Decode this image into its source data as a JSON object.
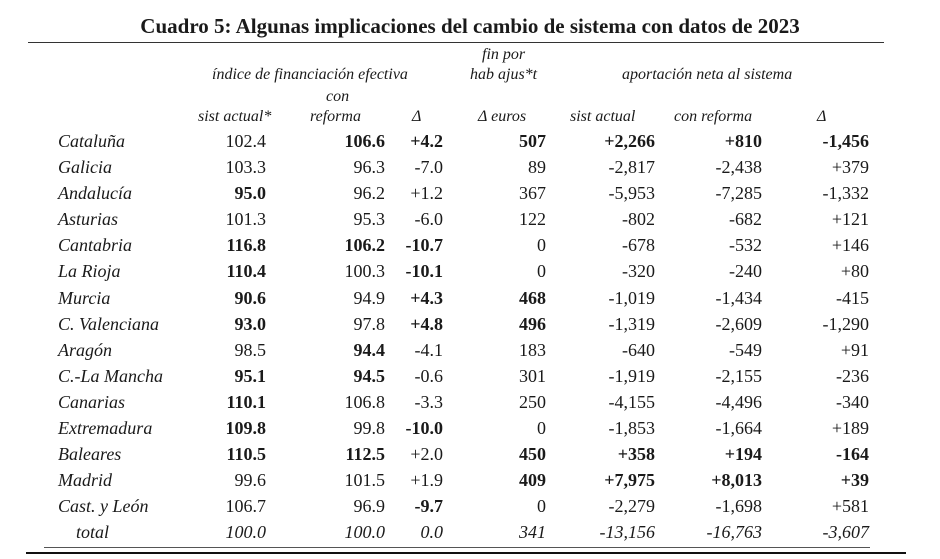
{
  "title": "Cuadro 5: Algunas implicaciones del cambio de sistema con datos de 2023",
  "headers": {
    "group1": "índice de financiación efectiva",
    "group2_line1": "fin por",
    "group2_line2": "hab ajus*t",
    "group3": "aportación neta al sistema",
    "col1": "sist actual*",
    "col2_line1": "con",
    "col2_line2": "reforma",
    "col3": "Δ",
    "col4": "Δ euros",
    "col5": "sist actual",
    "col6": "con reforma",
    "col7": "Δ"
  },
  "rows": [
    {
      "name": "Cataluña",
      "v": [
        "102.4",
        "106.6",
        "+4.2",
        "507",
        "+2,266",
        "+810",
        "-1,456"
      ],
      "bold": [
        0,
        1,
        1,
        1,
        1,
        1,
        1
      ]
    },
    {
      "name": "Galicia",
      "v": [
        "103.3",
        "96.3",
        "-7.0",
        "89",
        "-2,817",
        "-2,438",
        "+379"
      ],
      "bold": [
        0,
        0,
        0,
        0,
        0,
        0,
        0
      ]
    },
    {
      "name": "Andalucía",
      "v": [
        "95.0",
        "96.2",
        "+1.2",
        "367",
        "-5,953",
        "-7,285",
        "-1,332"
      ],
      "bold": [
        1,
        0,
        0,
        0,
        0,
        0,
        0
      ]
    },
    {
      "name": "Asturias",
      "v": [
        "101.3",
        "95.3",
        "-6.0",
        "122",
        "-802",
        "-682",
        "+121"
      ],
      "bold": [
        0,
        0,
        0,
        0,
        0,
        0,
        0
      ]
    },
    {
      "name": "Cantabria",
      "v": [
        "116.8",
        "106.2",
        "-10.7",
        "0",
        "-678",
        "-532",
        "+146"
      ],
      "bold": [
        1,
        1,
        1,
        0,
        0,
        0,
        0
      ]
    },
    {
      "name": "La Rioja",
      "v": [
        "110.4",
        "100.3",
        "-10.1",
        "0",
        "-320",
        "-240",
        "+80"
      ],
      "bold": [
        1,
        0,
        1,
        0,
        0,
        0,
        0
      ]
    },
    {
      "name": "Murcia",
      "v": [
        "90.6",
        "94.9",
        "+4.3",
        "468",
        "-1,019",
        "-1,434",
        "-415"
      ],
      "bold": [
        1,
        0,
        1,
        1,
        0,
        0,
        0
      ]
    },
    {
      "name": "C. Valenciana",
      "v": [
        "93.0",
        "97.8",
        "+4.8",
        "496",
        "-1,319",
        "-2,609",
        "-1,290"
      ],
      "bold": [
        1,
        0,
        1,
        1,
        0,
        0,
        0
      ]
    },
    {
      "name": "Aragón",
      "v": [
        "98.5",
        "94.4",
        "-4.1",
        "183",
        "-640",
        "-549",
        "+91"
      ],
      "bold": [
        0,
        1,
        0,
        0,
        0,
        0,
        0
      ]
    },
    {
      "name": "C.-La Mancha",
      "v": [
        "95.1",
        "94.5",
        "-0.6",
        "301",
        "-1,919",
        "-2,155",
        "-236"
      ],
      "bold": [
        1,
        1,
        0,
        0,
        0,
        0,
        0
      ]
    },
    {
      "name": "Canarias",
      "v": [
        "110.1",
        "106.8",
        "-3.3",
        "250",
        "-4,155",
        "-4,496",
        "-340"
      ],
      "bold": [
        1,
        0,
        0,
        0,
        0,
        0,
        0
      ]
    },
    {
      "name": "Extremadura",
      "v": [
        "109.8",
        "99.8",
        "-10.0",
        "0",
        "-1,853",
        "-1,664",
        "+189"
      ],
      "bold": [
        1,
        0,
        1,
        0,
        0,
        0,
        0
      ]
    },
    {
      "name": "Baleares",
      "v": [
        "110.5",
        "112.5",
        "+2.0",
        "450",
        "+358",
        "+194",
        "-164"
      ],
      "bold": [
        1,
        1,
        0,
        1,
        1,
        1,
        1
      ]
    },
    {
      "name": "Madrid",
      "v": [
        "99.6",
        "101.5",
        "+1.9",
        "409",
        "+7,975",
        "+8,013",
        "+39"
      ],
      "bold": [
        0,
        0,
        0,
        1,
        1,
        1,
        1
      ]
    },
    {
      "name": "Cast. y León",
      "v": [
        "106.7",
        "96.9",
        "-9.7",
        "0",
        "-2,279",
        "-1,698",
        "+581"
      ],
      "bold": [
        0,
        0,
        1,
        0,
        0,
        0,
        0
      ]
    }
  ],
  "total": {
    "name": "total",
    "v": [
      "100.0",
      "100.0",
      "0.0",
      "341",
      "-13,156",
      "-16,763",
      "-3,607"
    ]
  }
}
